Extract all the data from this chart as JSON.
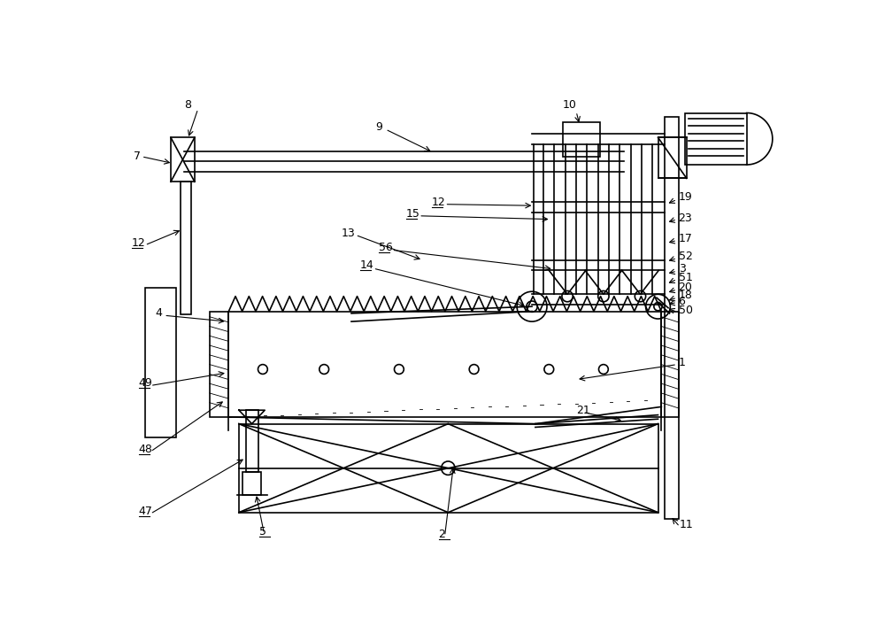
{
  "bg_color": "#ffffff",
  "lc": "#000000",
  "lw": 1.2,
  "fig_w": 10.0,
  "fig_h": 7.16
}
